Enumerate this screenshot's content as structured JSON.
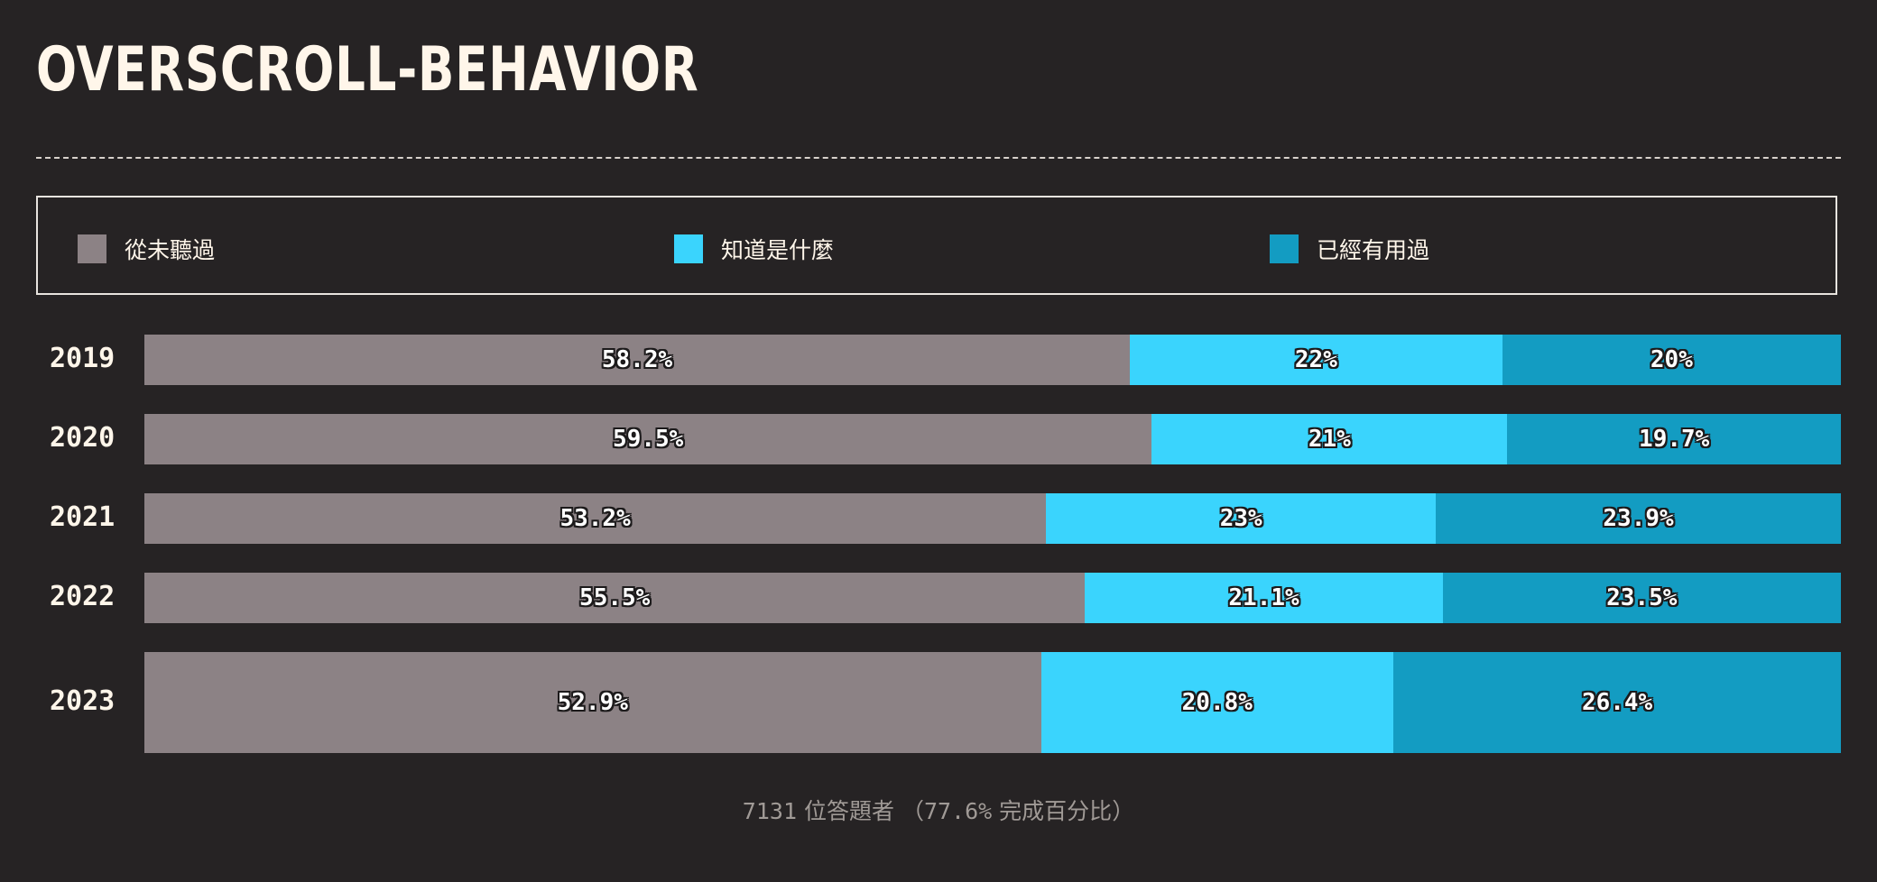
{
  "chart_data": {
    "type": "bar",
    "orientation": "horizontal",
    "stacked": true,
    "normalized": true,
    "title": "OVERSCROLL-BEHAVIOR",
    "categories": [
      "2019",
      "2020",
      "2021",
      "2022",
      "2023"
    ],
    "series": [
      {
        "name": "從未聽過",
        "color": "#8c8285",
        "values": [
          58.2,
          59.5,
          53.2,
          55.5,
          52.9
        ],
        "labels": [
          "58.2%",
          "59.5%",
          "53.2%",
          "55.5%",
          "52.9%"
        ]
      },
      {
        "name": "知道是什麼",
        "color": "#3ad4fd",
        "values": [
          22,
          21,
          23,
          21.1,
          20.8
        ],
        "labels": [
          "22%",
          "21%",
          "23%",
          "21.1%",
          "20.8%"
        ]
      },
      {
        "name": "已經有用過",
        "color": "#139cc2",
        "values": [
          20,
          19.7,
          23.9,
          23.5,
          26.4
        ],
        "labels": [
          "20%",
          "19.7%",
          "23.9%",
          "23.5%",
          "26.4%"
        ]
      }
    ],
    "legend_position": "top",
    "grid": false,
    "xlim": [
      0,
      100
    ]
  },
  "footnote": {
    "count": "7131",
    "respondents": "位答題者",
    "open_paren": "（",
    "percent": "77.6%",
    "completion": "完成百分比",
    "close_paren": "）"
  }
}
